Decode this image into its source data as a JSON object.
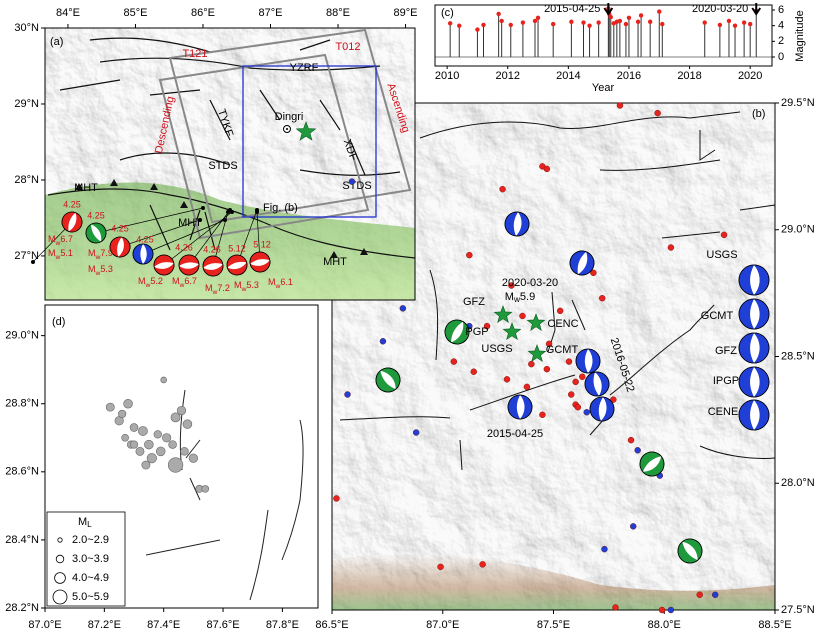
{
  "panel_a": {
    "label": "(a)",
    "xlim": [
      83.66,
      89.14
    ],
    "ylim": [
      26.42,
      30.0
    ],
    "xticks": [
      {
        "value": 84,
        "label": "84°E"
      },
      {
        "value": 85,
        "label": "85°E"
      },
      {
        "value": 86,
        "label": "86°E"
      },
      {
        "value": 87,
        "label": "87°E"
      },
      {
        "value": 88,
        "label": "88°E"
      },
      {
        "value": 89,
        "label": "89°E"
      }
    ],
    "yticks": [
      {
        "value": 30,
        "label": "30°N"
      },
      {
        "value": 29,
        "label": "29°N"
      },
      {
        "value": 28,
        "label": "28°N"
      },
      {
        "value": 27,
        "label": "27°N"
      }
    ],
    "track_labels": [
      "T121",
      "T012",
      "Descending",
      "Ascending"
    ],
    "fault_labels": [
      "YZRF",
      "TYKF",
      "XDF",
      "STDS",
      "STDS",
      "MHT",
      "MHT",
      "MHT"
    ],
    "town": "Dingri",
    "box_label": "Fig. (b)",
    "dates": [
      "4.25",
      "4.25",
      "4.25",
      "4.25",
      "4.26",
      "4.26",
      "5.12",
      "5.12"
    ],
    "magnitudes": [
      "Mw6.7",
      "Mw5.1",
      "Mw7.9",
      "Mw5.3",
      "Mw5.2",
      "Mw6.7",
      "Mw7.2",
      "Mw5.3",
      "Mw6.1"
    ]
  },
  "panel_b": {
    "label": "(b)",
    "xlim": [
      86.5,
      88.5
    ],
    "ylim": [
      27.5,
      29.5
    ],
    "xticks": [
      {
        "value": 86.5,
        "label": "86.5°E"
      },
      {
        "value": 87.0,
        "label": "87.0°E"
      },
      {
        "value": 87.5,
        "label": "87.5°E"
      },
      {
        "value": 88.0,
        "label": "88.0°E"
      },
      {
        "value": 88.5,
        "label": "88.5°E"
      }
    ],
    "yticks": [
      {
        "value": 29.5,
        "label": "29.5°N"
      },
      {
        "value": 29.0,
        "label": "29.0°N"
      },
      {
        "value": 28.5,
        "label": "28.5°N"
      },
      {
        "value": 28.0,
        "label": "28.0°N"
      },
      {
        "value": 27.5,
        "label": "27.5°N"
      }
    ],
    "event_date": "2020-03-20",
    "event_magnitude": "Mw5.9",
    "agencies": [
      "GFZ",
      "PGP",
      "USGS",
      "CENC",
      "GCMT"
    ],
    "date_2015": "2015-04-25",
    "date_2016": "2016-05-22",
    "legend_agencies": [
      "USGS",
      "GCMT",
      "GFZ",
      "IPGP",
      "CENE"
    ],
    "events": [
      {
        "color": "#e8231e",
        "lon": [
          87.8,
          87.97,
          87.45,
          87.47,
          87.27,
          87.12,
          87.68,
          87.72,
          87.53,
          87.31,
          87.2,
          87.36,
          87.05,
          87.14,
          87.4,
          87.47,
          87.57,
          87.6,
          87.63,
          87.58,
          87.6,
          87.71,
          87.77,
          87.61,
          87.45,
          87.38,
          87.29,
          87.48,
          88.03,
          88.27,
          87.85,
          86.52,
          86.99,
          87.18,
          88.16,
          87.78,
          87.99
        ],
        "lat": [
          29.49,
          29.46,
          29.25,
          29.24,
          29.16,
          28.9,
          28.83,
          28.73,
          28.68,
          28.78,
          28.62,
          28.66,
          28.48,
          28.44,
          28.47,
          28.45,
          28.48,
          28.4,
          28.42,
          28.35,
          28.31,
          28.36,
          28.33,
          28.3,
          28.27,
          28.38,
          28.41,
          28.55,
          28.93,
          28.98,
          28.17,
          27.94,
          27.67,
          27.68,
          27.56,
          27.51,
          27.5
        ]
      },
      {
        "color": "#1f3fd6",
        "lon": [
          86.59,
          86.82,
          86.73,
          86.57,
          86.88,
          87.12,
          87.65,
          87.88,
          87.96,
          87.98,
          87.73,
          87.86,
          88.03,
          88.23
        ],
        "lat": [
          29.19,
          28.69,
          28.56,
          28.35,
          28.2,
          28.62,
          28.28,
          28.13,
          28.06,
          28.03,
          27.74,
          27.83,
          27.5,
          27.56
        ]
      }
    ]
  },
  "chart_data": {
    "type": "stem",
    "label": "(c)",
    "xlabel": "Year",
    "ylabel": "Magnitude",
    "color": "#e8231e",
    "x": [
      2010.1,
      2010.4,
      2011.0,
      2011.2,
      2011.7,
      2011.8,
      2012.1,
      2012.5,
      2012.9,
      2013.0,
      2013.5,
      2014.1,
      2014.5,
      2014.7,
      2015.0,
      2015.32,
      2015.35,
      2015.4,
      2015.5,
      2015.6,
      2015.7,
      2015.9,
      2016.0,
      2016.3,
      2016.4,
      2016.7,
      2017.0,
      2017.1,
      2018.5,
      2019.0,
      2019.3,
      2019.5,
      2019.8,
      2020.0,
      2020.2
    ],
    "values": [
      4.3,
      4.0,
      3.5,
      4.1,
      5.5,
      4.6,
      4.1,
      4.4,
      4.6,
      5.0,
      4.2,
      4.5,
      4.4,
      4.0,
      4.4,
      6.2,
      5.5,
      5.1,
      4.3,
      4.5,
      4.6,
      4.2,
      5.0,
      4.5,
      5.3,
      4.5,
      5.8,
      4.2,
      4.4,
      4.1,
      4.6,
      4.0,
      4.4,
      4.2,
      5.9
    ],
    "xlim": [
      2009.6,
      2020.72
    ],
    "ylim": [
      -1.15,
      6.64
    ],
    "xticks": [
      2010,
      2012,
      2014,
      2016,
      2018,
      2020
    ],
    "yticks": [
      0,
      2,
      4,
      6
    ],
    "annotations": [
      {
        "x": 2015.32,
        "text": "2015-04-25"
      },
      {
        "x": 2020.2,
        "text": "2020-03-20"
      }
    ]
  },
  "panel_d": {
    "label": "(d)",
    "xlim": [
      87.0,
      87.92
    ],
    "ylim": [
      28.2,
      29.09
    ],
    "xticks": [
      {
        "value": 87.0,
        "label": "87.0°E"
      },
      {
        "value": 87.2,
        "label": "87.2°E"
      },
      {
        "value": 87.4,
        "label": "87.4°E"
      },
      {
        "value": 87.6,
        "label": "87.6°E"
      },
      {
        "value": 87.8,
        "label": "87.8°E"
      }
    ],
    "yticks": [
      {
        "value": 29.0,
        "label": "29.0°N"
      },
      {
        "value": 28.8,
        "label": "28.8°N"
      },
      {
        "value": 28.6,
        "label": "28.6°N"
      },
      {
        "value": 28.4,
        "label": "28.4°N"
      },
      {
        "value": 28.2,
        "label": "28.2°N"
      }
    ],
    "legend_title": "ML",
    "legend_entries": [
      "2.0~2.9",
      "3.0~3.9",
      "4.0~4.9",
      "5.0~5.9"
    ],
    "legend_levels": [
      2.0,
      3.0,
      4.0,
      5.0
    ],
    "lon": [
      87.4,
      87.28,
      87.22,
      87.25,
      87.26,
      87.3,
      87.33,
      87.27,
      87.29,
      87.32,
      87.35,
      87.38,
      87.41,
      87.43,
      87.44,
      87.46,
      87.48,
      87.36,
      87.39,
      87.3,
      87.34,
      87.47,
      87.5,
      87.52,
      87.54,
      87.44
    ],
    "lat": [
      28.87,
      28.8,
      28.79,
      28.75,
      28.77,
      28.73,
      28.72,
      28.7,
      28.68,
      28.66,
      28.68,
      28.71,
      28.7,
      28.68,
      28.76,
      28.78,
      28.74,
      28.64,
      28.66,
      28.68,
      28.62,
      28.66,
      28.64,
      28.55,
      28.55,
      28.62
    ],
    "ml": [
      2.5,
      3.4,
      3.2,
      3.3,
      3.0,
      3.1,
      3.5,
      2.8,
      3.0,
      3.2,
      3.4,
      3.0,
      3.3,
      3.1,
      3.5,
      3.3,
      3.4,
      3.6,
      3.4,
      3.0,
      3.2,
      3.1,
      3.3,
      2.9,
      2.8,
      5.2
    ]
  }
}
